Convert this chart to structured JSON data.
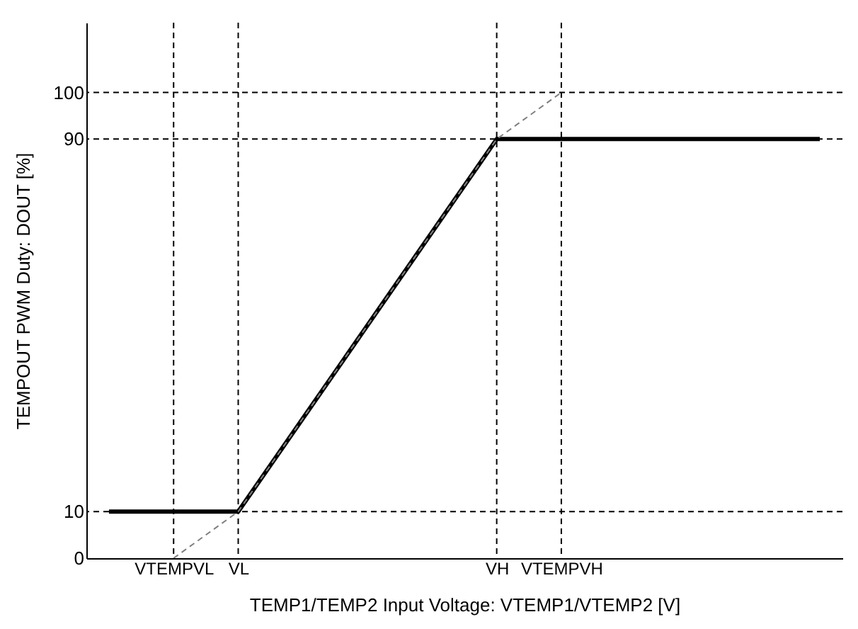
{
  "chart_data": {
    "type": "line",
    "xlabel": "TEMP1/TEMP2 Input Voltage: VTEMP1/VTEMP2 [V]",
    "ylabel": "TEMPOUT PWM Duty: DOUT [%]",
    "categories": [
      null,
      "VTEMPVL",
      "VL",
      null,
      null,
      null,
      "VH",
      "VTEMPVH",
      null,
      null,
      null,
      null
    ],
    "ylim": [
      0,
      115
    ],
    "yticks": [
      0,
      10,
      90,
      100
    ],
    "grid": false,
    "series": [
      {
        "color": "#000000",
        "line_style": "solid",
        "values": [
          10,
          10,
          10,
          30,
          50,
          70,
          90,
          90,
          90,
          90,
          90,
          90
        ]
      },
      {
        "color": "#808080",
        "line_style": "dashed",
        "values": [
          null,
          0,
          10,
          30,
          50,
          70,
          90,
          100,
          null,
          null,
          null,
          null
        ]
      }
    ],
    "ref_lines": [
      {
        "axis": "y",
        "value": 10,
        "color": "#000000",
        "line_style": "dashed"
      },
      {
        "axis": "y",
        "value": 90,
        "color": "#000000",
        "line_style": "dashed"
      },
      {
        "axis": "y",
        "value": 100,
        "color": "#000000",
        "line_style": "dashed"
      },
      {
        "axis": "x",
        "value": "VTEMPVL",
        "color": "#000000",
        "line_style": "dashed"
      },
      {
        "axis": "x",
        "value": "VL",
        "color": "#000000",
        "line_style": "dashed"
      },
      {
        "axis": "x",
        "value": "VH",
        "color": "#000000",
        "line_style": "dashed"
      },
      {
        "axis": "x",
        "value": "VTEMPVH",
        "color": "#000000",
        "line_style": "dashed"
      }
    ]
  }
}
